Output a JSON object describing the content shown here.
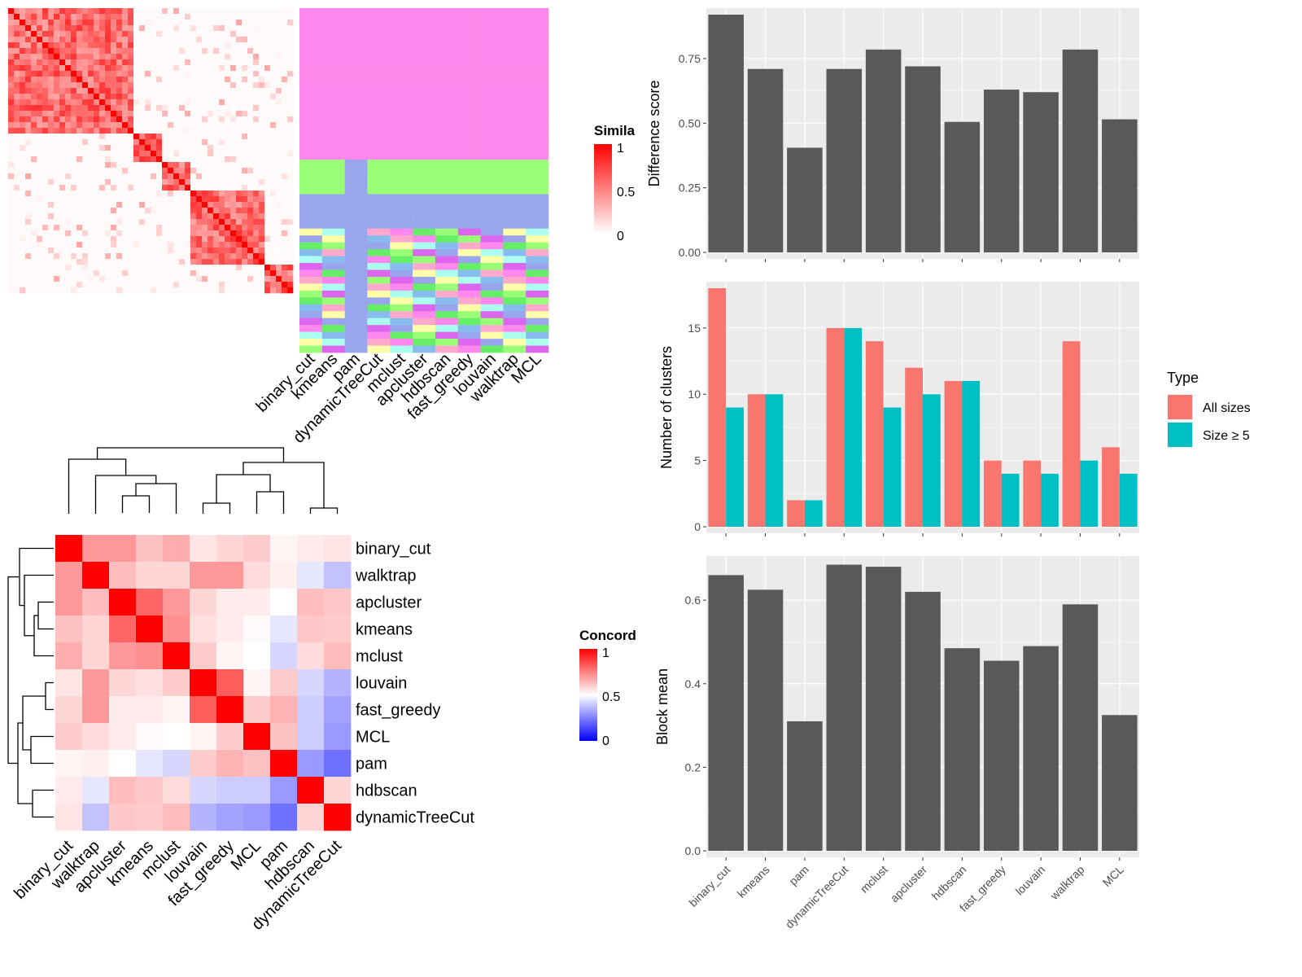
{
  "similarity": {
    "legend_title": "Simila",
    "legend_ticks": [
      "1",
      "0.5",
      "0"
    ],
    "methods": [
      "binary_cut",
      "kmeans",
      "pam",
      "dynamicTreeCut",
      "mclust",
      "apcluster",
      "hdbscan",
      "fast_greedy",
      "louvain",
      "walktrap",
      "MCL"
    ]
  },
  "concordance": {
    "legend_title": "Concord",
    "legend_ticks": [
      "1",
      "0.5",
      "0"
    ],
    "labels": [
      "binary_cut",
      "walktrap",
      "apcluster",
      "kmeans",
      "mclust",
      "louvain",
      "fast_greedy",
      "MCL",
      "pam",
      "hdbscan",
      "dynamicTreeCut"
    ],
    "matrix": [
      [
        1.0,
        0.7,
        0.7,
        0.62,
        0.66,
        0.55,
        0.58,
        0.6,
        0.52,
        0.54,
        0.55
      ],
      [
        0.7,
        1.0,
        0.63,
        0.58,
        0.58,
        0.7,
        0.7,
        0.57,
        0.53,
        0.45,
        0.38
      ],
      [
        0.7,
        0.63,
        1.0,
        0.8,
        0.7,
        0.58,
        0.54,
        0.54,
        0.5,
        0.63,
        0.61
      ],
      [
        0.62,
        0.58,
        0.8,
        1.0,
        0.72,
        0.56,
        0.54,
        0.51,
        0.45,
        0.61,
        0.6
      ],
      [
        0.66,
        0.58,
        0.7,
        0.72,
        1.0,
        0.6,
        0.52,
        0.5,
        0.42,
        0.57,
        0.63
      ],
      [
        0.55,
        0.7,
        0.58,
        0.56,
        0.6,
        1.0,
        0.82,
        0.52,
        0.6,
        0.42,
        0.35
      ],
      [
        0.58,
        0.7,
        0.54,
        0.54,
        0.52,
        0.82,
        1.0,
        0.6,
        0.65,
        0.4,
        0.32
      ],
      [
        0.6,
        0.57,
        0.54,
        0.51,
        0.5,
        0.52,
        0.6,
        1.0,
        0.62,
        0.4,
        0.3
      ],
      [
        0.52,
        0.53,
        0.5,
        0.45,
        0.42,
        0.6,
        0.65,
        0.62,
        1.0,
        0.3,
        0.22
      ],
      [
        0.54,
        0.45,
        0.63,
        0.61,
        0.57,
        0.42,
        0.4,
        0.4,
        0.3,
        1.0,
        0.58
      ],
      [
        0.55,
        0.38,
        0.61,
        0.6,
        0.63,
        0.35,
        0.32,
        0.3,
        0.22,
        0.58,
        1.0
      ]
    ]
  },
  "chart_data": [
    {
      "type": "bar",
      "categories": [
        "binary_cut",
        "kmeans",
        "pam",
        "dynamicTreeCut",
        "mclust",
        "apcluster",
        "hdbscan",
        "fast_greedy",
        "louvain",
        "walktrap",
        "MCL"
      ],
      "values": [
        0.92,
        0.71,
        0.405,
        0.71,
        0.785,
        0.72,
        0.505,
        0.63,
        0.62,
        0.785,
        0.515
      ],
      "ylabel": "Difference score",
      "ylim": [
        0,
        0.92
      ],
      "yticks": [
        "0.00",
        "0.25",
        "0.50",
        "0.75"
      ],
      "grid": true
    },
    {
      "type": "bar",
      "categories": [
        "binary_cut",
        "kmeans",
        "pam",
        "dynamicTreeCut",
        "mclust",
        "apcluster",
        "hdbscan",
        "fast_greedy",
        "louvain",
        "walktrap",
        "MCL"
      ],
      "series": [
        {
          "name": "All sizes",
          "color": "#F8766D",
          "values": [
            18,
            10,
            2,
            15,
            14,
            12,
            11,
            5,
            5,
            14,
            6
          ]
        },
        {
          "name": "Size ≥ 5",
          "color": "#00BFC4",
          "values": [
            9,
            10,
            2,
            15,
            9,
            10,
            11,
            4,
            4,
            5,
            4
          ]
        }
      ],
      "ylabel": "Number of clusters",
      "ylim": [
        0,
        18
      ],
      "yticks": [
        "0",
        "5",
        "10",
        "15"
      ],
      "legend_title": "Type",
      "legend_position": "right",
      "grid": true
    },
    {
      "type": "bar",
      "categories": [
        "binary_cut",
        "kmeans",
        "pam",
        "dynamicTreeCut",
        "mclust",
        "apcluster",
        "hdbscan",
        "fast_greedy",
        "louvain",
        "walktrap",
        "MCL"
      ],
      "values": [
        0.66,
        0.625,
        0.31,
        0.685,
        0.68,
        0.62,
        0.485,
        0.455,
        0.49,
        0.59,
        0.325
      ],
      "ylabel": "Block mean",
      "ylim": [
        0,
        0.69
      ],
      "yticks": [
        "0.0",
        "0.2",
        "0.4",
        "0.6"
      ],
      "grid": true
    }
  ]
}
